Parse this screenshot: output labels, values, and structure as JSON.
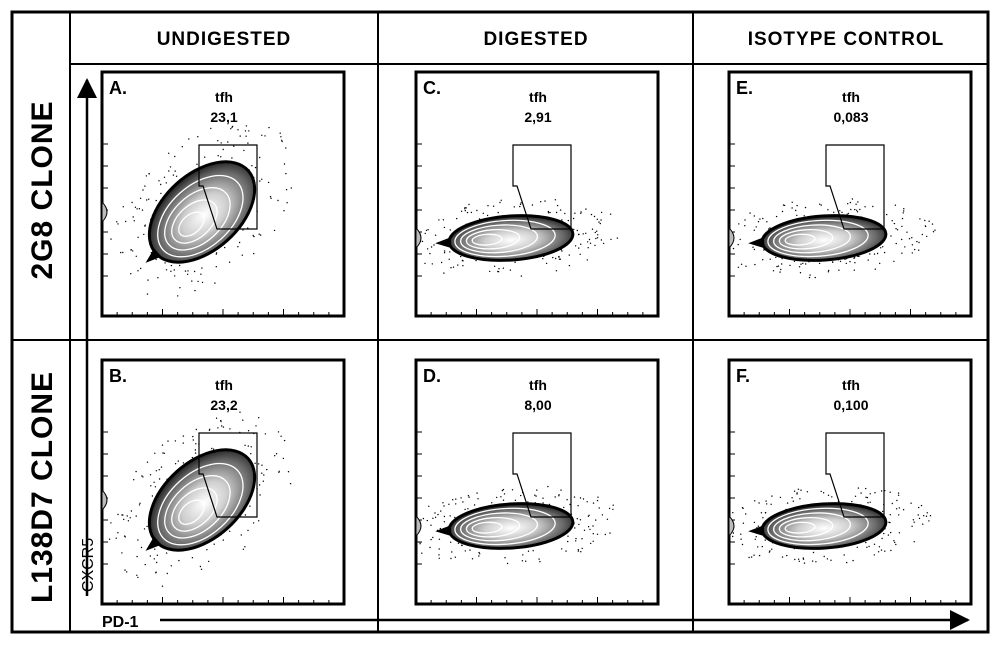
{
  "chart_data": {
    "type": "contour",
    "columns": [
      "UNDIGESTED",
      "DIGESTED",
      "ISOTYPE CONTROL"
    ],
    "rows": [
      "2G8 CLONE",
      "L138D7 CLONE"
    ],
    "xlabel": "PD-1",
    "ylabel": "CXCR5",
    "gate_name": "tfh",
    "panels": [
      {
        "id": "A",
        "label": "A.",
        "row": 0,
        "col": 0,
        "gate": "tfh",
        "value": "23,1"
      },
      {
        "id": "B",
        "label": "B.",
        "row": 1,
        "col": 0,
        "gate": "tfh",
        "value": "23,2"
      },
      {
        "id": "C",
        "label": "C.",
        "row": 0,
        "col": 1,
        "gate": "tfh",
        "value": "2,91"
      },
      {
        "id": "D",
        "label": "D.",
        "row": 1,
        "col": 1,
        "gate": "tfh",
        "value": "8,00"
      },
      {
        "id": "E",
        "label": "E.",
        "row": 0,
        "col": 2,
        "gate": "tfh",
        "value": "0,083"
      },
      {
        "id": "F",
        "label": "F.",
        "row": 1,
        "col": 2,
        "gate": "tfh",
        "value": "0,100"
      }
    ]
  }
}
